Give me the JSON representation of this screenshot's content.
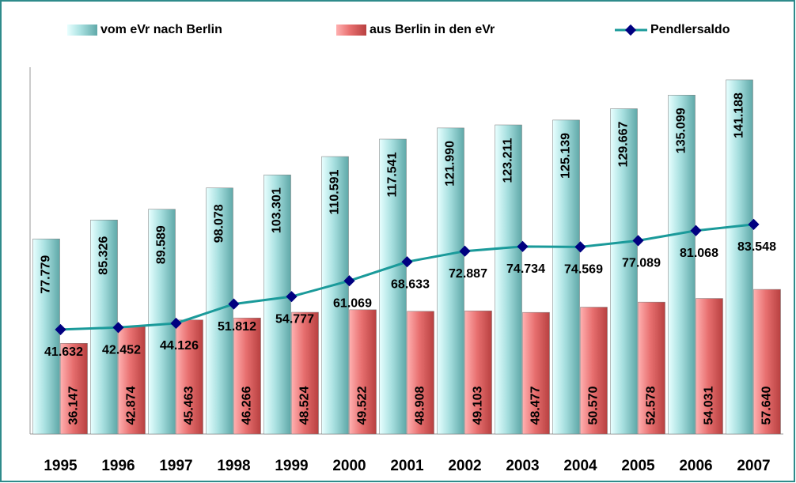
{
  "chart_data": {
    "type": "bar",
    "categories": [
      "1995",
      "1996",
      "1997",
      "1998",
      "1999",
      "2000",
      "2001",
      "2002",
      "2003",
      "2004",
      "2005",
      "2006",
      "2007"
    ],
    "ylim": [
      0,
      150000
    ],
    "legend": "top",
    "series": [
      {
        "name": "vom eVr nach Berlin",
        "type": "bar",
        "color": "#8fd3d3",
        "values": [
          77779,
          85326,
          89589,
          98078,
          103301,
          110591,
          117541,
          121990,
          123211,
          125139,
          129667,
          135099,
          141188
        ],
        "value_labels": [
          "77.779",
          "85.326",
          "89.589",
          "98.078",
          "103.301",
          "110.591",
          "117.541",
          "121.990",
          "123.211",
          "125.139",
          "129.667",
          "135.099",
          "141.188"
        ]
      },
      {
        "name": "aus Berlin in den eVr",
        "type": "bar",
        "color": "#e06464",
        "values": [
          36147,
          42874,
          45463,
          46266,
          48524,
          49522,
          48908,
          49103,
          48477,
          50570,
          52578,
          54031,
          57640
        ],
        "value_labels": [
          "36.147",
          "42.874",
          "45.463",
          "46.266",
          "48.524",
          "49.522",
          "48.908",
          "49.103",
          "48.477",
          "50.570",
          "52.578",
          "54.031",
          "57.640"
        ]
      },
      {
        "name": "Pendlersaldo",
        "type": "line",
        "color": "#1a9a9a",
        "marker_color": "#000080",
        "values": [
          41632,
          42452,
          44126,
          51812,
          54777,
          61069,
          68633,
          72887,
          74734,
          74569,
          77089,
          81068,
          83548
        ],
        "value_labels": [
          "41.632",
          "42.452",
          "44.126",
          "51.812",
          "54.777",
          "61.069",
          "68.633",
          "72.887",
          "74.734",
          "74.569",
          "77.089",
          "81.068",
          "83.548"
        ]
      }
    ]
  }
}
